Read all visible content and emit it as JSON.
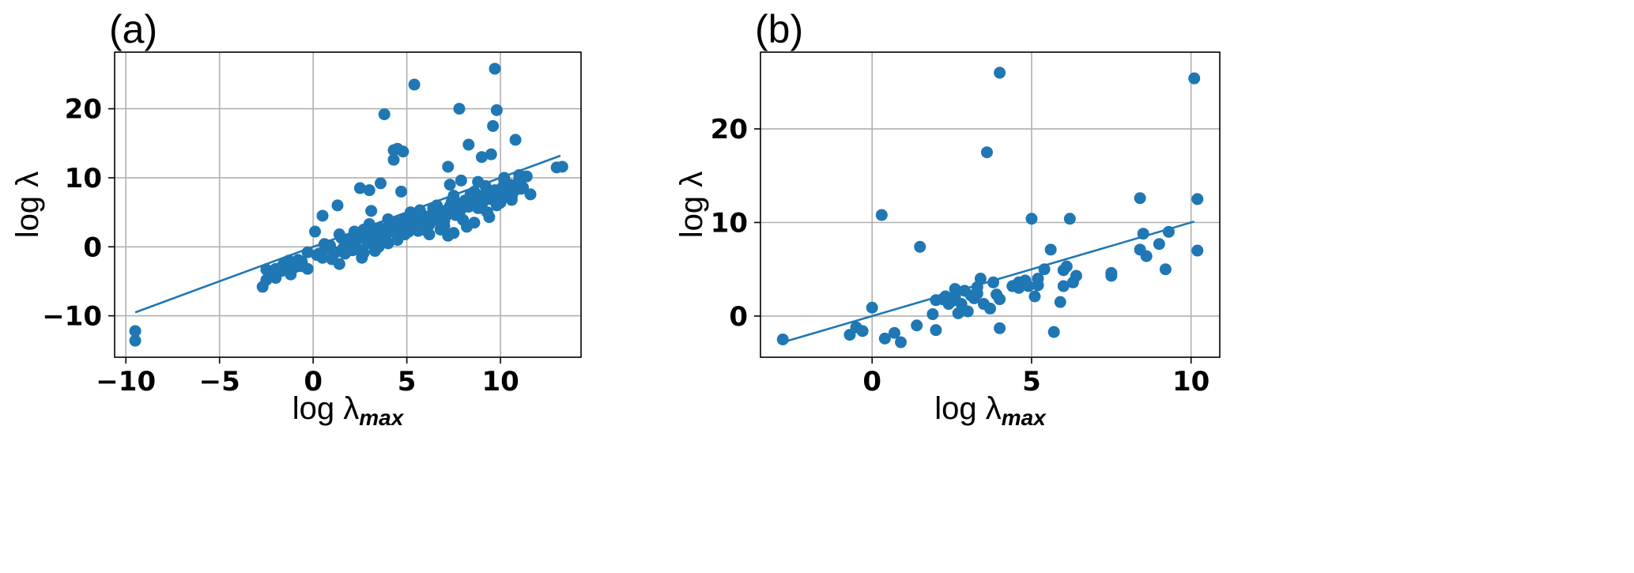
{
  "chart_data": [
    {
      "type": "scatter",
      "panel_label": "(a)",
      "xlabel": "log λ",
      "xlabel_sub": "max",
      "ylabel": "log λ",
      "xlim": [
        -10.6,
        14.3
      ],
      "ylim": [
        -16,
        28.2
      ],
      "xticks": [
        -10,
        -5,
        0,
        5,
        10
      ],
      "yticks": [
        -10,
        0,
        10,
        20
      ],
      "xtick_labels": [
        "−10",
        "−5",
        "0",
        "5",
        "10"
      ],
      "ytick_labels": [
        "−10",
        "0",
        "10",
        "20"
      ],
      "grid": true,
      "color": "#1f77b4",
      "fit_line": {
        "x": [
          -9.5,
          13.2
        ],
        "y": [
          -9.5,
          13.2
        ]
      },
      "points": [
        [
          -9.5,
          -12.2
        ],
        [
          -9.5,
          -13.6
        ],
        [
          -2.7,
          -5.8
        ],
        [
          -2.5,
          -4.8
        ],
        [
          -2.5,
          -3.3
        ],
        [
          -2.2,
          -4.2
        ],
        [
          -2.0,
          -4.5
        ],
        [
          -1.7,
          -3.5
        ],
        [
          -1.4,
          -3.2
        ],
        [
          -1.3,
          -2.0
        ],
        [
          -1.2,
          -4.0
        ],
        [
          -1.0,
          -3.0
        ],
        [
          -0.8,
          -1.9
        ],
        [
          -0.6,
          -2.2
        ],
        [
          -0.3,
          -3.2
        ],
        [
          0.1,
          2.2
        ],
        [
          0.3,
          -1.0
        ],
        [
          0.5,
          4.5
        ],
        [
          0.5,
          -1.6
        ],
        [
          0.9,
          0.2
        ],
        [
          1.2,
          -0.8
        ],
        [
          1.3,
          6.0
        ],
        [
          1.4,
          -2.5
        ],
        [
          1.5,
          1.3
        ],
        [
          1.7,
          -1.0
        ],
        [
          1.9,
          0.8
        ],
        [
          2.1,
          -0.5
        ],
        [
          2.2,
          1.8
        ],
        [
          2.4,
          -0.4
        ],
        [
          2.5,
          8.5
        ],
        [
          2.6,
          -1.6
        ],
        [
          2.7,
          2.5
        ],
        [
          2.9,
          0.5
        ],
        [
          3.0,
          8.2
        ],
        [
          3.1,
          1.5
        ],
        [
          3.1,
          5.2
        ],
        [
          3.3,
          -0.6
        ],
        [
          3.5,
          1.2
        ],
        [
          3.6,
          9.2
        ],
        [
          3.8,
          19.2
        ],
        [
          4.0,
          0.5
        ],
        [
          4.1,
          2.2
        ],
        [
          4.3,
          14.0
        ],
        [
          4.3,
          12.6
        ],
        [
          4.4,
          3.6
        ],
        [
          4.5,
          14.2
        ],
        [
          4.6,
          2.0
        ],
        [
          4.7,
          8.0
        ],
        [
          4.8,
          13.8
        ],
        [
          5.0,
          3.2
        ],
        [
          5.2,
          5.0
        ],
        [
          5.4,
          23.5
        ],
        [
          5.5,
          2.8
        ],
        [
          5.6,
          2.3
        ],
        [
          5.8,
          4.0
        ],
        [
          6.0,
          4.4
        ],
        [
          6.2,
          3.2
        ],
        [
          6.4,
          4.2
        ],
        [
          6.6,
          5.0
        ],
        [
          6.8,
          2.5
        ],
        [
          7.0,
          3.8
        ],
        [
          7.2,
          11.6
        ],
        [
          7.3,
          9.0
        ],
        [
          7.4,
          5.5
        ],
        [
          7.5,
          2.0
        ],
        [
          7.6,
          4.6
        ],
        [
          7.8,
          20.0
        ],
        [
          7.9,
          9.6
        ],
        [
          8.1,
          6.0
        ],
        [
          8.3,
          14.8
        ],
        [
          8.5,
          6.8
        ],
        [
          8.6,
          3.5
        ],
        [
          8.8,
          9.4
        ],
        [
          9.0,
          13.0
        ],
        [
          9.1,
          7.0
        ],
        [
          9.3,
          5.0
        ],
        [
          9.5,
          13.4
        ],
        [
          9.6,
          17.5
        ],
        [
          9.7,
          25.8
        ],
        [
          9.8,
          19.8
        ],
        [
          10.0,
          7.8
        ],
        [
          10.2,
          9.6
        ],
        [
          10.4,
          8.2
        ],
        [
          10.6,
          7.2
        ],
        [
          10.8,
          15.5
        ],
        [
          11.0,
          9.8
        ],
        [
          11.2,
          8.6
        ],
        [
          11.4,
          10.2
        ],
        [
          11.6,
          7.6
        ],
        [
          13.0,
          11.5
        ],
        [
          13.3,
          11.6
        ],
        [
          -0.7,
          -2.8
        ],
        [
          0.2,
          -1.2
        ],
        [
          0.7,
          -0.3
        ],
        [
          1.0,
          -1.8
        ],
        [
          1.6,
          -0.2
        ],
        [
          1.8,
          1.0
        ],
        [
          2.0,
          0.2
        ],
        [
          2.3,
          0.9
        ],
        [
          2.6,
          1.7
        ],
        [
          2.8,
          1.1
        ],
        [
          3.0,
          0.8
        ],
        [
          3.2,
          2.0
        ],
        [
          3.4,
          1.0
        ],
        [
          3.6,
          2.7
        ],
        [
          3.8,
          1.9
        ],
        [
          4.0,
          2.6
        ],
        [
          4.2,
          3.1
        ],
        [
          4.4,
          2.6
        ],
        [
          4.6,
          3.4
        ],
        [
          4.8,
          3.8
        ],
        [
          5.0,
          4.2
        ],
        [
          5.2,
          3.9
        ],
        [
          5.4,
          4.7
        ],
        [
          5.6,
          4.3
        ],
        [
          5.9,
          3.5
        ],
        [
          6.1,
          4.0
        ],
        [
          6.3,
          3.6
        ],
        [
          6.5,
          4.8
        ],
        [
          6.7,
          4.1
        ],
        [
          6.9,
          5.2
        ],
        [
          7.1,
          4.5
        ],
        [
          7.3,
          5.9
        ],
        [
          7.5,
          5.1
        ],
        [
          7.7,
          6.3
        ],
        [
          7.9,
          5.5
        ],
        [
          8.1,
          6.7
        ],
        [
          8.3,
          5.8
        ],
        [
          8.5,
          7.1
        ],
        [
          8.7,
          6.2
        ],
        [
          8.9,
          7.4
        ],
        [
          9.1,
          6.6
        ],
        [
          9.3,
          7.8
        ],
        [
          9.5,
          6.9
        ],
        [
          9.7,
          8.2
        ],
        [
          9.9,
          7.2
        ],
        [
          10.1,
          8.6
        ],
        [
          10.3,
          7.6
        ],
        [
          10.5,
          9.0
        ],
        [
          10.7,
          8.0
        ],
        [
          10.9,
          9.2
        ],
        [
          11.1,
          8.4
        ],
        [
          3.5,
          0.0
        ],
        [
          4.5,
          1.0
        ],
        [
          6.0,
          2.4
        ],
        [
          7.0,
          3.0
        ],
        [
          8.0,
          3.9
        ],
        [
          9.0,
          5.6
        ],
        [
          10.0,
          6.4
        ],
        [
          4.0,
          4.0
        ],
        [
          2.2,
          2.2
        ],
        [
          5.7,
          5.3
        ],
        [
          6.6,
          6.0
        ],
        [
          7.5,
          7.4
        ],
        [
          8.6,
          8.0
        ],
        [
          3.0,
          3.3
        ],
        [
          1.4,
          1.8
        ],
        [
          0.6,
          0.4
        ],
        [
          -0.3,
          -0.8
        ],
        [
          -1.6,
          -2.6
        ],
        [
          -2.0,
          -3.2
        ],
        [
          5.1,
          2.2
        ],
        [
          6.2,
          1.8
        ],
        [
          7.2,
          1.6
        ],
        [
          8.2,
          2.9
        ],
        [
          9.4,
          4.3
        ],
        [
          2.7,
          -0.9
        ],
        [
          3.9,
          0.9
        ],
        [
          4.9,
          1.8
        ],
        [
          5.8,
          3.0
        ],
        [
          6.8,
          3.6
        ],
        [
          7.8,
          4.8
        ],
        [
          8.8,
          5.6
        ],
        [
          9.8,
          6.0
        ],
        [
          10.6,
          6.8
        ],
        [
          3.3,
          2.4
        ],
        [
          4.3,
          3.0
        ],
        [
          5.3,
          3.4
        ],
        [
          6.4,
          5.6
        ],
        [
          7.4,
          6.6
        ],
        [
          8.4,
          7.6
        ],
        [
          9.2,
          8.8
        ],
        [
          10.2,
          10.0
        ],
        [
          11.0,
          10.4
        ]
      ]
    },
    {
      "type": "scatter",
      "panel_label": "(b)",
      "xlabel": "log λ",
      "xlabel_sub": "max",
      "ylabel": "log λ",
      "xlim": [
        -3.5,
        10.9
      ],
      "ylim": [
        -4.4,
        28.2
      ],
      "xticks": [
        0,
        5,
        10
      ],
      "yticks": [
        0,
        10,
        20
      ],
      "xtick_labels": [
        "0",
        "5",
        "10"
      ],
      "ytick_labels": [
        "0",
        "10",
        "20"
      ],
      "grid": true,
      "color": "#1f77b4",
      "fit_line": {
        "x": [
          -2.8,
          10.1
        ],
        "y": [
          -2.8,
          10.1
        ]
      },
      "points": [
        [
          -2.8,
          -2.5
        ],
        [
          -0.7,
          -2.0
        ],
        [
          -0.5,
          -1.2
        ],
        [
          -0.3,
          -1.6
        ],
        [
          0.0,
          0.9
        ],
        [
          0.3,
          10.8
        ],
        [
          0.4,
          -2.4
        ],
        [
          0.7,
          -1.8
        ],
        [
          0.9,
          -2.8
        ],
        [
          1.4,
          -1.0
        ],
        [
          1.5,
          7.4
        ],
        [
          1.9,
          0.2
        ],
        [
          2.0,
          1.7
        ],
        [
          2.0,
          -1.5
        ],
        [
          2.2,
          1.8
        ],
        [
          2.3,
          2.1
        ],
        [
          2.4,
          1.3
        ],
        [
          2.5,
          1.6
        ],
        [
          2.6,
          2.0
        ],
        [
          2.6,
          2.9
        ],
        [
          2.7,
          0.3
        ],
        [
          2.8,
          1.3
        ],
        [
          2.9,
          2.7
        ],
        [
          3.0,
          0.5
        ],
        [
          3.2,
          1.9
        ],
        [
          3.3,
          2.4
        ],
        [
          3.3,
          3.1
        ],
        [
          3.4,
          4.0
        ],
        [
          3.5,
          1.3
        ],
        [
          3.6,
          17.5
        ],
        [
          3.7,
          0.8
        ],
        [
          3.8,
          3.6
        ],
        [
          3.9,
          2.3
        ],
        [
          4.0,
          26.0
        ],
        [
          4.0,
          1.8
        ],
        [
          4.0,
          -1.3
        ],
        [
          4.5,
          3.3
        ],
        [
          4.6,
          3.6
        ],
        [
          4.6,
          3.0
        ],
        [
          4.7,
          3.4
        ],
        [
          4.8,
          3.8
        ],
        [
          4.9,
          3.2
        ],
        [
          5.0,
          10.4
        ],
        [
          5.1,
          2.1
        ],
        [
          5.2,
          3.3
        ],
        [
          5.2,
          4.0
        ],
        [
          5.4,
          5.0
        ],
        [
          5.6,
          7.1
        ],
        [
          5.7,
          -1.7
        ],
        [
          5.9,
          1.5
        ],
        [
          6.0,
          3.2
        ],
        [
          6.0,
          4.9
        ],
        [
          6.1,
          5.3
        ],
        [
          6.2,
          10.4
        ],
        [
          6.3,
          3.6
        ],
        [
          6.4,
          4.3
        ],
        [
          7.5,
          4.3
        ],
        [
          7.5,
          4.6
        ],
        [
          8.4,
          12.6
        ],
        [
          8.4,
          7.1
        ],
        [
          8.5,
          8.8
        ],
        [
          8.6,
          6.4
        ],
        [
          9.0,
          7.7
        ],
        [
          9.2,
          5.0
        ],
        [
          9.3,
          9.0
        ],
        [
          10.1,
          25.4
        ],
        [
          10.2,
          12.5
        ],
        [
          10.2,
          7.0
        ],
        [
          4.4,
          3.2
        ],
        [
          3.1,
          2.2
        ]
      ]
    }
  ]
}
